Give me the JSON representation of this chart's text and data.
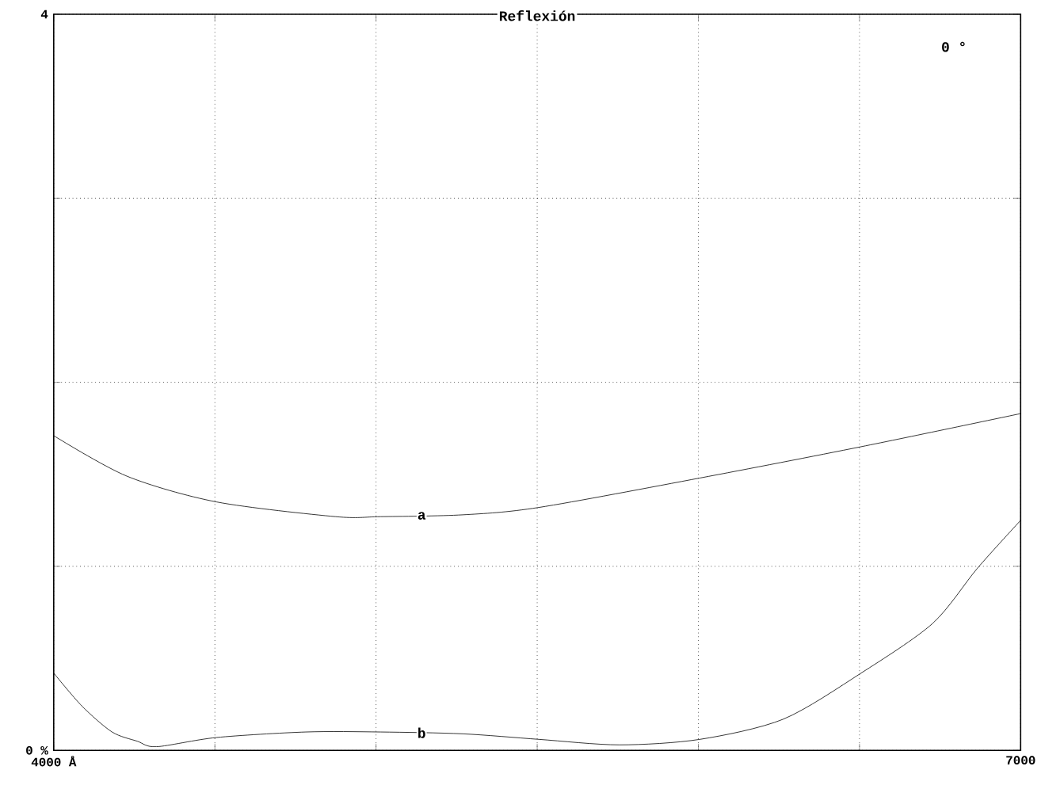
{
  "chart_data": {
    "type": "line",
    "title": "Reflexión",
    "annotations": [
      "0 °"
    ],
    "xlim": [
      4000,
      7000
    ],
    "ylim": [
      0,
      4
    ],
    "xticks": [
      {
        "value": 4000,
        "label": "4000 Å"
      },
      {
        "value": 4500,
        "label": null
      },
      {
        "value": 5000,
        "label": null
      },
      {
        "value": 5500,
        "label": null
      },
      {
        "value": 6000,
        "label": null
      },
      {
        "value": 6500,
        "label": null
      },
      {
        "value": 7000,
        "label": "7000"
      }
    ],
    "yticks": [
      {
        "value": 0,
        "label": "0 %"
      },
      {
        "value": 1,
        "label": null
      },
      {
        "value": 2,
        "label": null
      },
      {
        "value": 3,
        "label": null
      },
      {
        "value": 4,
        "label": "4"
      }
    ],
    "grid": true,
    "marker": "none",
    "line_style": "solid",
    "series": [
      {
        "name": "a",
        "color": "#000000",
        "x": [
          4000,
          4227,
          4505,
          4875,
          5014,
          5269,
          5505,
          6005,
          6505,
          7000
        ],
        "values": [
          1.71,
          1.49,
          1.35,
          1.27,
          1.27,
          1.28,
          1.32,
          1.48,
          1.65,
          1.83
        ]
      },
      {
        "name": "b",
        "color": "#000000",
        "x": [
          4000,
          4088,
          4181,
          4259,
          4319,
          4505,
          4782,
          5014,
          5269,
          5505,
          5755,
          6005,
          6264,
          6505,
          6727,
          6866,
          7000
        ],
        "values": [
          0.42,
          0.24,
          0.1,
          0.05,
          0.02,
          0.07,
          0.1,
          0.1,
          0.09,
          0.06,
          0.03,
          0.06,
          0.17,
          0.42,
          0.69,
          0.99,
          1.25
        ]
      }
    ]
  }
}
